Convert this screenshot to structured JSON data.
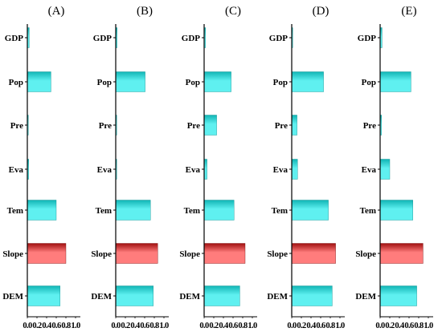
{
  "chart_data": [
    {
      "panel": "(A)",
      "type": "bar",
      "orientation": "horizontal",
      "categories": [
        "GDP",
        "Pop",
        "Pre",
        "Eva",
        "Tem",
        "Slope",
        "DEM"
      ],
      "values": [
        0.04,
        0.49,
        0.02,
        0.03,
        0.6,
        0.8,
        0.68
      ],
      "xlim": [
        0.0,
        1.0
      ],
      "xticks": [
        "0.0",
        "0.2",
        "0.4",
        "0.6",
        "0.8",
        "1.0"
      ],
      "highlight": "Slope"
    },
    {
      "panel": "(B)",
      "type": "bar",
      "orientation": "horizontal",
      "categories": [
        "GDP",
        "Pop",
        "Pre",
        "Eva",
        "Tem",
        "Slope",
        "DEM"
      ],
      "values": [
        0.03,
        0.61,
        0.02,
        0.02,
        0.72,
        0.87,
        0.78
      ],
      "xlim": [
        0.0,
        1.0
      ],
      "xticks": [
        "0.0",
        "0.2",
        "0.4",
        "0.6",
        "0.8",
        "1.0"
      ],
      "highlight": "Slope"
    },
    {
      "panel": "(C)",
      "type": "bar",
      "orientation": "horizontal",
      "categories": [
        "GDP",
        "Pop",
        "Pre",
        "Eva",
        "Tem",
        "Slope",
        "DEM"
      ],
      "values": [
        0.03,
        0.56,
        0.26,
        0.06,
        0.62,
        0.85,
        0.74
      ],
      "xlim": [
        0.0,
        1.0
      ],
      "xticks": [
        "0.0",
        "0.2",
        "0.4",
        "0.6",
        "0.8",
        "1.0"
      ],
      "highlight": "Slope"
    },
    {
      "panel": "(D)",
      "type": "bar",
      "orientation": "horizontal",
      "categories": [
        "GDP",
        "Pop",
        "Pre",
        "Eva",
        "Tem",
        "Slope",
        "DEM"
      ],
      "values": [
        0.02,
        0.66,
        0.11,
        0.12,
        0.76,
        0.91,
        0.84
      ],
      "xlim": [
        0.0,
        1.0
      ],
      "xticks": [
        "0.0",
        "0.2",
        "0.4",
        "0.6",
        "0.8",
        "1.0"
      ],
      "highlight": "Slope"
    },
    {
      "panel": "(E)",
      "type": "bar",
      "orientation": "horizontal",
      "categories": [
        "GDP",
        "Pop",
        "Pre",
        "Eva",
        "Tem",
        "Slope",
        "DEM"
      ],
      "values": [
        0.04,
        0.64,
        0.03,
        0.2,
        0.68,
        0.89,
        0.76
      ],
      "xlim": [
        0.0,
        1.0
      ],
      "xticks": [
        "0.0",
        "0.2",
        "0.4",
        "0.6",
        "0.8",
        "1.0"
      ],
      "highlight": "Slope"
    }
  ],
  "colors": {
    "bar_light": "#5ff0f0",
    "bar_dark": "#11b5b5",
    "highlight_light": "#ff7c7c",
    "highlight_dark": "#a01010",
    "axis": "#000000"
  }
}
